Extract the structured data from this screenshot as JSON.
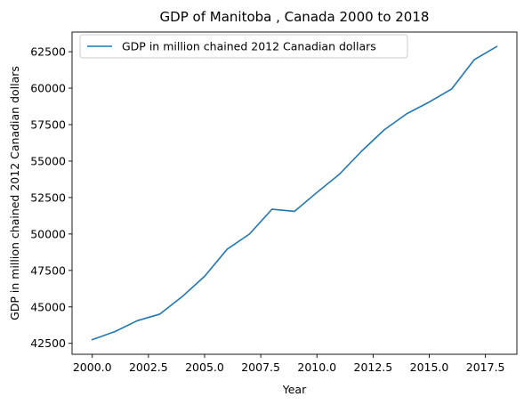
{
  "chart_data": {
    "type": "line",
    "title": "GDP of Manitoba , Canada 2000 to 2018",
    "xlabel": "Year",
    "ylabel": "GDP in million chained 2012 Canadian dollars",
    "xlim": [
      1999.1,
      2018.9
    ],
    "ylim": [
      41750,
      63850
    ],
    "x_ticks": [
      2000.0,
      2002.5,
      2005.0,
      2007.5,
      2010.0,
      2012.5,
      2015.0,
      2017.5
    ],
    "x_tick_labels": [
      "2000.0",
      "2002.5",
      "2005.0",
      "2007.5",
      "2010.0",
      "2012.5",
      "2015.0",
      "2017.5"
    ],
    "y_ticks": [
      42500,
      45000,
      47500,
      50000,
      52500,
      55000,
      57500,
      60000,
      62500
    ],
    "y_tick_labels": [
      "42500",
      "45000",
      "47500",
      "50000",
      "52500",
      "55000",
      "57500",
      "60000",
      "62500"
    ],
    "grid": false,
    "legend_position": "top-left",
    "series": [
      {
        "name": "GDP in million chained 2012 Canadian dollars",
        "color": "#1f77b4",
        "x": [
          2000,
          2001,
          2002,
          2003,
          2004,
          2005,
          2006,
          2007,
          2008,
          2009,
          2010,
          2011,
          2012,
          2013,
          2014,
          2015,
          2016,
          2017,
          2018
        ],
        "y": [
          42750,
          43300,
          44050,
          44500,
          45700,
          47100,
          48950,
          50000,
          51700,
          51550,
          52850,
          54100,
          55700,
          57150,
          58250,
          59050,
          59950,
          61950,
          62850
        ]
      }
    ]
  }
}
